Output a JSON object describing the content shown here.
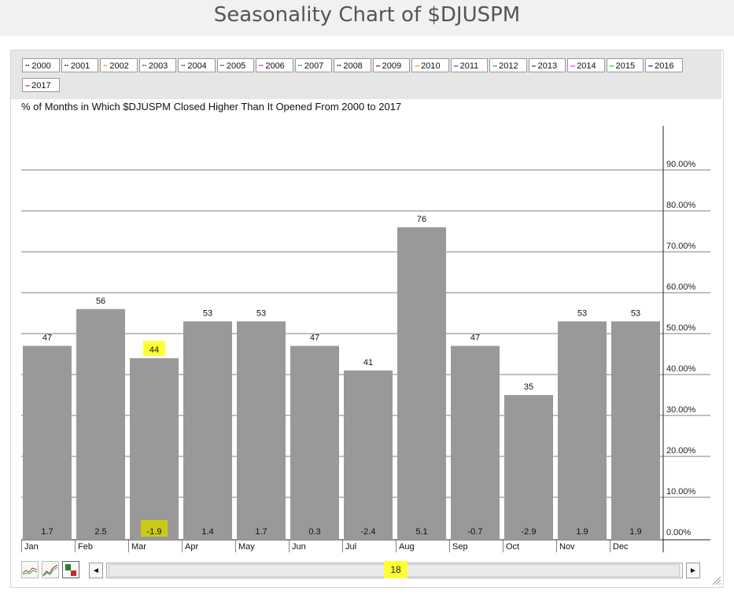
{
  "page": {
    "title": "Seasonality Chart of $DJUSPM",
    "subtitle": "% of Months in Which $DJUSPM Closed Higher Than It Opened From 2000 to 2017",
    "scroll_value": "18"
  },
  "legend": [
    {
      "label": "2000",
      "color": "#1a237e",
      "style": "dotted"
    },
    {
      "label": "2001",
      "color": "#4a1a1a",
      "style": "dotted"
    },
    {
      "label": "2002",
      "color": "#ff7f00",
      "style": "dotted"
    },
    {
      "label": "2003",
      "color": "#7b1fa2",
      "style": "dotted"
    },
    {
      "label": "2004",
      "color": "#006064",
      "style": "dotted"
    },
    {
      "label": "2005",
      "color": "#444444",
      "style": "dotted"
    },
    {
      "label": "2006",
      "color": "#cc00cc",
      "style": "dotted"
    },
    {
      "label": "2007",
      "color": "#00aa00",
      "style": "dotted"
    },
    {
      "label": "2008",
      "color": "#222222",
      "style": "dotted"
    },
    {
      "label": "2009",
      "color": "#8b0000",
      "style": "solid"
    },
    {
      "label": "2010",
      "color": "#ff7f00",
      "style": "solid"
    },
    {
      "label": "2011",
      "color": "#6a0dad",
      "style": "solid"
    },
    {
      "label": "2012",
      "color": "#008b8b",
      "style": "solid"
    },
    {
      "label": "2013",
      "color": "#333333",
      "style": "solid"
    },
    {
      "label": "2014",
      "color": "#ff00ff",
      "style": "solid"
    },
    {
      "label": "2015",
      "color": "#00cc00",
      "style": "solid"
    },
    {
      "label": "2016",
      "color": "#000080",
      "style": "solid"
    },
    {
      "label": "2017",
      "color": "#ff0000",
      "style": "solid"
    }
  ],
  "icons": [
    "line-chart-icon",
    "performance-chart-icon",
    "bar-chart-icon"
  ],
  "colors": {
    "bar": "#999999",
    "grid": "#555555",
    "highlight": "#ffff33",
    "background": "#ffffff"
  },
  "chart_data": {
    "type": "bar",
    "categories": [
      "Jan",
      "Feb",
      "Mar",
      "Apr",
      "May",
      "Jun",
      "Jul",
      "Aug",
      "Sep",
      "Oct",
      "Nov",
      "Dec"
    ],
    "values": [
      47,
      56,
      44,
      53,
      53,
      47,
      41,
      76,
      47,
      35,
      53,
      53
    ],
    "avg_change": [
      "1.7",
      "2.5",
      "-1.9",
      "1.4",
      "1.7",
      "0.3",
      "-2.4",
      "5.1",
      "-0.7",
      "-2.9",
      "1.9",
      "1.9"
    ],
    "highlighted": [
      "Mar"
    ],
    "ylim": [
      0,
      100
    ],
    "yticks": [
      "0.00%",
      "10.00%",
      "20.00%",
      "30.00%",
      "40.00%",
      "50.00%",
      "60.00%",
      "70.00%",
      "80.00%",
      "90.00%"
    ],
    "grid": true,
    "y_axis_side": "right"
  }
}
